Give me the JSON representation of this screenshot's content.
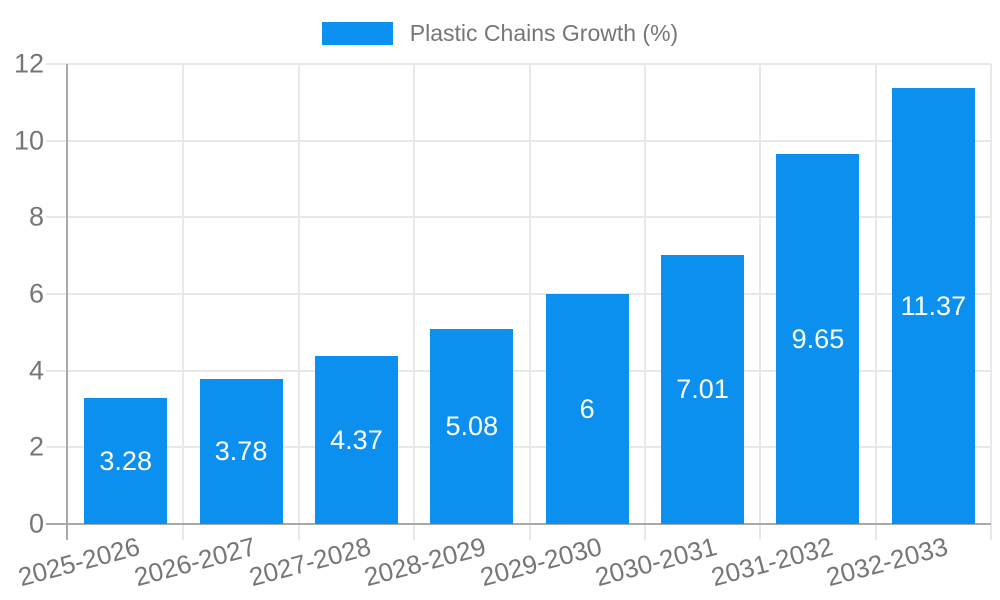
{
  "legend": {
    "label": "Plastic Chains Growth (%)"
  },
  "colors": {
    "bar": "#0B90F0",
    "grid": "#e8e8e8",
    "axis": "#a9a9a9",
    "tick_text": "#767676",
    "value_text": "#ffffff",
    "background": "#ffffff"
  },
  "chart_data": {
    "type": "bar",
    "title": "",
    "legend_label": "Plastic Chains Growth (%)",
    "legend_position": "top-center",
    "categories": [
      "2025-2026",
      "2026-2027",
      "2027-2028",
      "2028-2029",
      "2029-2030",
      "2030-2031",
      "2031-2032",
      "2032-2033"
    ],
    "values": [
      3.28,
      3.78,
      4.37,
      5.08,
      6,
      7.01,
      9.65,
      11.37
    ],
    "value_labels": [
      "3.28",
      "3.78",
      "4.37",
      "5.08",
      "6",
      "7.01",
      "9.65",
      "11.37"
    ],
    "xlabel": "",
    "ylabel": "",
    "ylim": [
      0,
      12
    ],
    "yticks": [
      0,
      2,
      4,
      6,
      8,
      10,
      12
    ],
    "grid": true,
    "x_tick_rotation_deg": -15
  }
}
